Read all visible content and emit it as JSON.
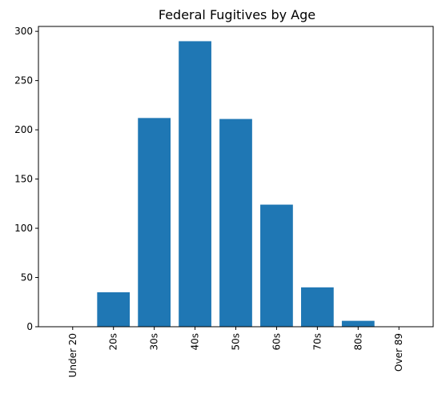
{
  "chart_data": {
    "type": "bar",
    "title": "Federal Fugitives by Age",
    "xlabel": "",
    "ylabel": "",
    "categories": [
      "Under 20",
      "20s",
      "30s",
      "40s",
      "50s",
      "60s",
      "70s",
      "80s",
      "Over 89"
    ],
    "values": [
      0,
      35,
      212,
      290,
      211,
      124,
      40,
      6,
      0
    ],
    "ylim": [
      0,
      305
    ],
    "yticks": [
      0,
      50,
      100,
      150,
      200,
      250,
      300
    ],
    "bar_color": "#1f77b4",
    "grid": false,
    "legend": "none"
  }
}
